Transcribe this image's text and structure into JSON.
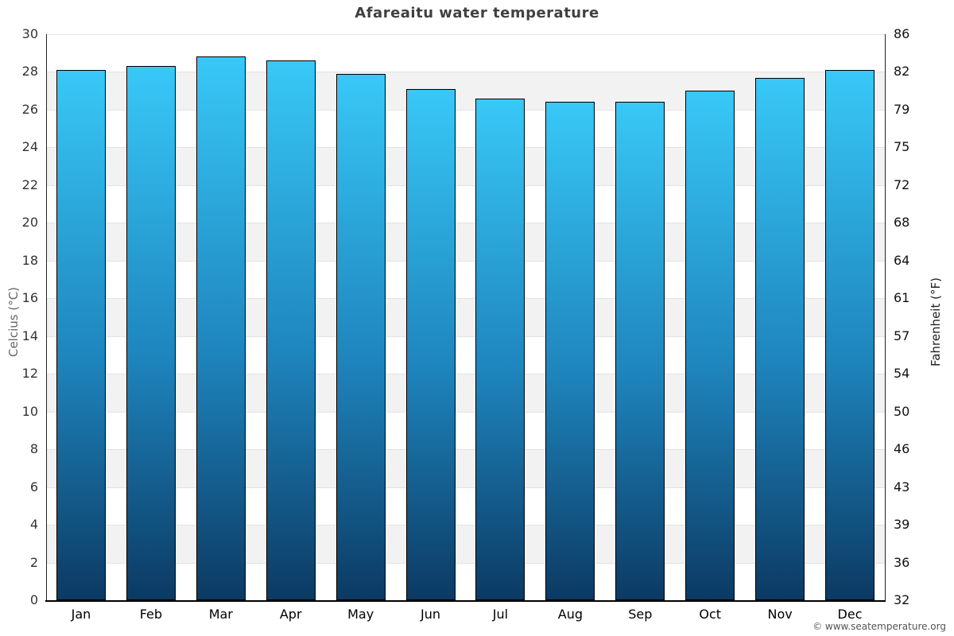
{
  "header": {
    "title": "Afareaitu water temperature"
  },
  "chart_data": {
    "type": "bar",
    "title": "Afareaitu water temperature",
    "categories": [
      "Jan",
      "Feb",
      "Mar",
      "Apr",
      "May",
      "Jun",
      "Jul",
      "Aug",
      "Sep",
      "Oct",
      "Nov",
      "Dec"
    ],
    "series": [
      {
        "name": "Water temperature (°C)",
        "values": [
          28.1,
          28.3,
          28.8,
          28.6,
          27.9,
          27.1,
          26.6,
          26.4,
          26.4,
          27.0,
          27.7,
          28.1
        ]
      }
    ],
    "ylabel_left": "Celcius (°C)",
    "ylabel_right": "Fahrenheit (°F)",
    "yticks_celsius": [
      30,
      28,
      26,
      24,
      22,
      20,
      18,
      16,
      14,
      12,
      10,
      8,
      6,
      4,
      2,
      0
    ],
    "yticks_fahrenheit": [
      86,
      82,
      79,
      75,
      72,
      68,
      64,
      61,
      57,
      54,
      50,
      46,
      43,
      39,
      36,
      32
    ],
    "ylim": [
      0,
      30
    ],
    "grid": "horizontal gridlines with alternating shaded bands",
    "legend": "none",
    "colors": {
      "bar_gradient_top": "#38c8f7",
      "bar_gradient_mid": "#1e84bc",
      "bar_gradient_bottom": "#0c3a63",
      "bar_border": "#000000",
      "band_shade": "#f2f2f2",
      "gridline": "#e2e2e2",
      "axis_line": "#222222",
      "x_axis_line": "#000000",
      "title_text": "#404040",
      "tick_label": "#333333",
      "month_label": "#000000",
      "axis_title_left": "#666666",
      "axis_title_right": "#222222",
      "copyright_text": "#555555"
    }
  },
  "footer": {
    "copyright": "© www.seatemperature.org"
  }
}
